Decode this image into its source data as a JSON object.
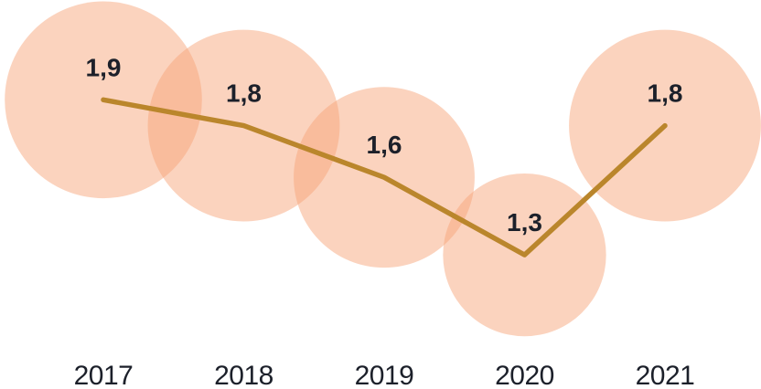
{
  "chart_data": {
    "type": "line",
    "subtype": "line-with-proportional-bubble-markers",
    "categories": [
      "2017",
      "2018",
      "2019",
      "2020",
      "2021"
    ],
    "series": [
      {
        "name": "value",
        "values": [
          1.9,
          1.8,
          1.6,
          1.3,
          1.8
        ]
      }
    ],
    "value_labels": [
      "1,9",
      "1,8",
      "1,6",
      "1,3",
      "1,8"
    ],
    "title": "",
    "xlabel": "",
    "ylabel": "",
    "ylim": [
      1.0,
      2.2
    ],
    "grid": false,
    "legend_position": "none",
    "axes_visible": false,
    "decimal_separator": ",",
    "bubble_area_proportional_to_value": true,
    "colors": {
      "bubble": "#F7A377",
      "bubble_opacity": 0.48,
      "line": "#BA862C",
      "value_label": "#1C202A",
      "axis_label": "#1C202A",
      "background": "#FFFFFF"
    }
  }
}
